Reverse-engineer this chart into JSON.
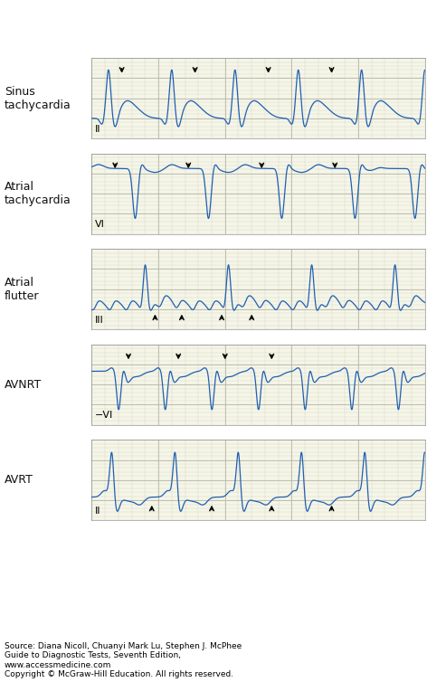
{
  "panels": [
    {
      "label": "Sinus\ntachycardia",
      "lead": "II",
      "arrows_down": [
        0.09,
        0.31,
        0.53,
        0.72
      ],
      "arrows_up": [],
      "rhythm": "sinus_tachy"
    },
    {
      "label": "Atrial\ntachycardia",
      "lead": "VI",
      "arrows_down": [
        0.07,
        0.29,
        0.51,
        0.73
      ],
      "arrows_up": [],
      "rhythm": "atrial_tachy"
    },
    {
      "label": "Atrial\nflutter",
      "lead": "III",
      "arrows_down": [],
      "arrows_up": [
        0.19,
        0.27,
        0.39,
        0.48
      ],
      "rhythm": "atrial_flutter"
    },
    {
      "label": "AVNRT",
      "lead": "-VI",
      "arrows_down": [
        0.11,
        0.26,
        0.4,
        0.54
      ],
      "arrows_up": [],
      "rhythm": "avnrt"
    },
    {
      "label": "AVRT",
      "lead": "II",
      "arrows_down": [],
      "arrows_up": [
        0.18,
        0.36,
        0.54,
        0.72
      ],
      "rhythm": "avrt"
    }
  ],
  "ecg_color": "#2060b0",
  "grid_minor_color": "#d8d8c8",
  "grid_major_color": "#b8b8a8",
  "bg_color": "#f5f5e8",
  "panel_border_color": "#999999",
  "text_color": "#111111",
  "source_text": "Source: Diana Nicoll, Chuanyi Mark Lu, Stephen J. McPhee\nGuide to Diagnostic Tests, Seventh Edition,\nwww.accessmedicine.com\nCopyright © McGraw-Hill Education. All rights reserved.",
  "label_fontsize": 9,
  "lead_fontsize": 8,
  "source_fontsize": 6.5
}
